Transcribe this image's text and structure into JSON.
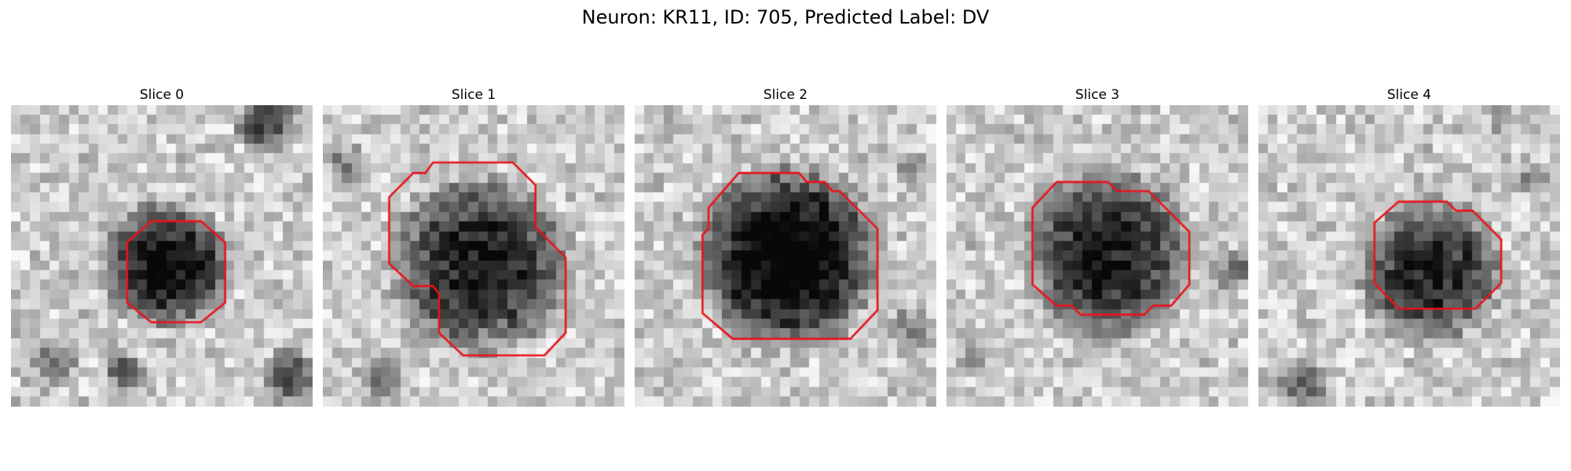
{
  "figure": {
    "title": "Neuron: KR11, ID: 705, Predicted Label: DV"
  },
  "colors": {
    "contour": "#e8141b",
    "background": "#ffffff"
  },
  "slices": [
    {
      "title": "Slice 0",
      "contour": [
        [
          0.385,
          0.455
        ],
        [
          0.465,
          0.385
        ],
        [
          0.63,
          0.385
        ],
        [
          0.71,
          0.455
        ],
        [
          0.71,
          0.655
        ],
        [
          0.63,
          0.72
        ],
        [
          0.465,
          0.72
        ],
        [
          0.385,
          0.655
        ]
      ]
    },
    {
      "title": "Slice 1",
      "contour": [
        [
          0.22,
          0.305
        ],
        [
          0.3,
          0.225
        ],
        [
          0.34,
          0.225
        ],
        [
          0.365,
          0.19
        ],
        [
          0.63,
          0.19
        ],
        [
          0.705,
          0.265
        ],
        [
          0.705,
          0.405
        ],
        [
          0.805,
          0.505
        ],
        [
          0.805,
          0.755
        ],
        [
          0.735,
          0.83
        ],
        [
          0.465,
          0.83
        ],
        [
          0.385,
          0.755
        ],
        [
          0.385,
          0.625
        ],
        [
          0.365,
          0.6
        ],
        [
          0.3,
          0.6
        ],
        [
          0.22,
          0.525
        ]
      ]
    },
    {
      "title": "Slice 2",
      "contour": [
        [
          0.245,
          0.34
        ],
        [
          0.345,
          0.225
        ],
        [
          0.545,
          0.225
        ],
        [
          0.57,
          0.255
        ],
        [
          0.63,
          0.255
        ],
        [
          0.655,
          0.285
        ],
        [
          0.68,
          0.285
        ],
        [
          0.805,
          0.41
        ],
        [
          0.805,
          0.68
        ],
        [
          0.715,
          0.775
        ],
        [
          0.325,
          0.775
        ],
        [
          0.225,
          0.69
        ],
        [
          0.225,
          0.43
        ],
        [
          0.245,
          0.41
        ]
      ]
    },
    {
      "title": "Slice 3",
      "contour": [
        [
          0.285,
          0.34
        ],
        [
          0.365,
          0.255
        ],
        [
          0.535,
          0.255
        ],
        [
          0.565,
          0.285
        ],
        [
          0.67,
          0.285
        ],
        [
          0.805,
          0.42
        ],
        [
          0.805,
          0.595
        ],
        [
          0.745,
          0.665
        ],
        [
          0.685,
          0.665
        ],
        [
          0.655,
          0.695
        ],
        [
          0.445,
          0.695
        ],
        [
          0.415,
          0.665
        ],
        [
          0.365,
          0.665
        ],
        [
          0.285,
          0.595
        ]
      ]
    },
    {
      "title": "Slice 4",
      "contour": [
        [
          0.385,
          0.39
        ],
        [
          0.465,
          0.32
        ],
        [
          0.625,
          0.32
        ],
        [
          0.655,
          0.35
        ],
        [
          0.71,
          0.35
        ],
        [
          0.805,
          0.445
        ],
        [
          0.805,
          0.59
        ],
        [
          0.72,
          0.675
        ],
        [
          0.465,
          0.675
        ],
        [
          0.385,
          0.59
        ]
      ]
    }
  ]
}
